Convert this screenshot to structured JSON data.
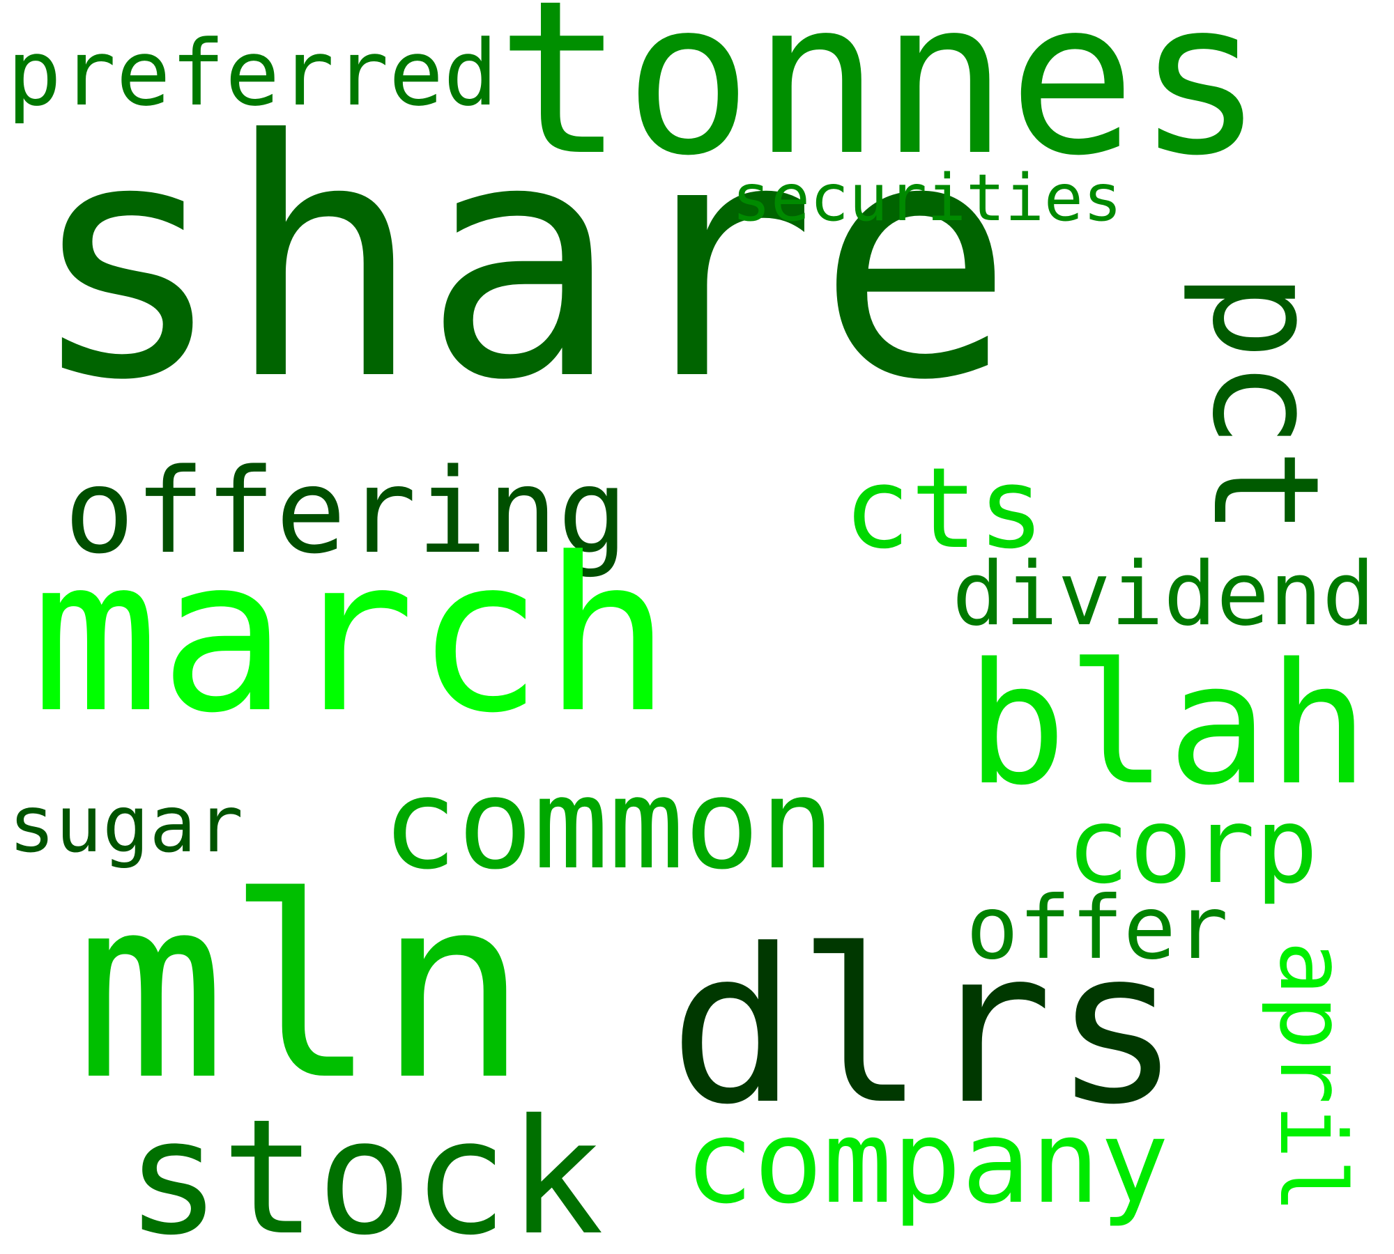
{
  "words": [
    {
      "id": "share",
      "text": "share",
      "color": "#006400"
    },
    {
      "id": "tonnes",
      "text": "tonnes",
      "color": "#008f00"
    },
    {
      "id": "march",
      "text": "march",
      "color": "#00ff00"
    },
    {
      "id": "mln",
      "text": "mln",
      "color": "#00bf00"
    },
    {
      "id": "dlrs",
      "text": "dlrs",
      "color": "#003800"
    },
    {
      "id": "stock",
      "text": "stock",
      "color": "#007000"
    },
    {
      "id": "common",
      "text": "common",
      "color": "#00a800"
    },
    {
      "id": "blah",
      "text": "blah",
      "color": "#00e000"
    },
    {
      "id": "pct",
      "text": "pct",
      "color": "#005a00"
    },
    {
      "id": "offering",
      "text": "offering",
      "color": "#004f00"
    },
    {
      "id": "cts",
      "text": "cts",
      "color": "#00d800"
    },
    {
      "id": "company",
      "text": "company",
      "color": "#00ea00"
    },
    {
      "id": "preferred",
      "text": "preferred",
      "color": "#007800"
    },
    {
      "id": "securities",
      "text": "securities",
      "color": "#008a00"
    },
    {
      "id": "dividend",
      "text": "dividend",
      "color": "#007a00"
    },
    {
      "id": "corp",
      "text": "corp",
      "color": "#00d000"
    },
    {
      "id": "offer",
      "text": "offer",
      "color": "#008200"
    },
    {
      "id": "sugar",
      "text": "sugar",
      "color": "#005400"
    },
    {
      "id": "april",
      "text": "april",
      "color": "#00f000"
    }
  ]
}
